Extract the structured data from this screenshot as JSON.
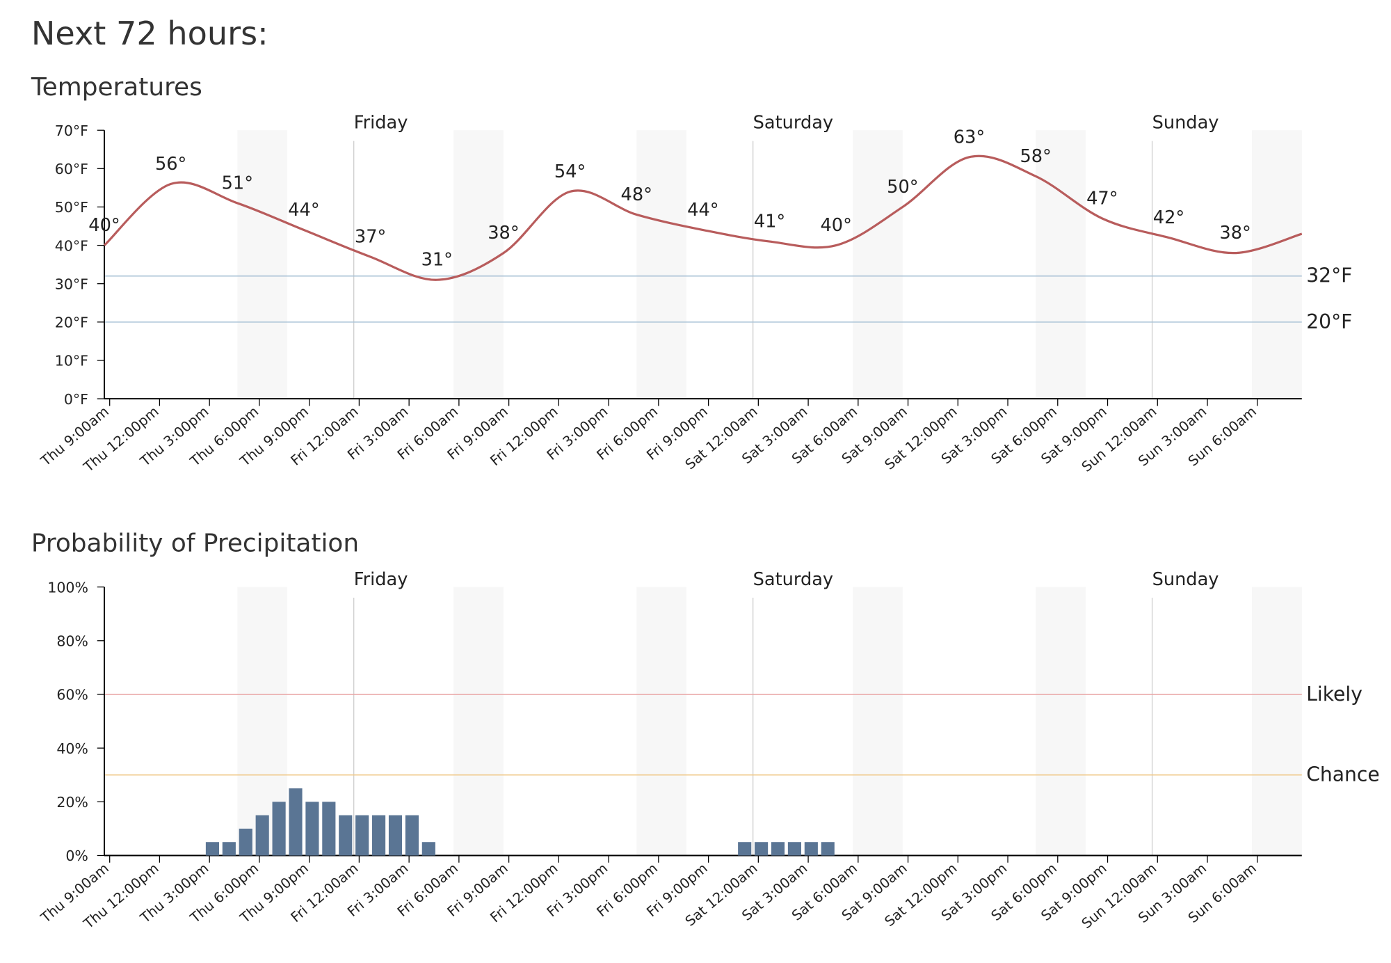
{
  "title": "Next 72 hours:",
  "chart_data": [
    {
      "type": "line",
      "title": "Temperatures",
      "x": [
        9,
        13,
        17,
        21,
        25,
        29,
        33,
        37,
        41,
        45,
        49,
        53,
        57,
        61,
        65,
        69,
        73,
        77,
        81
      ],
      "values": [
        40,
        56,
        51,
        44,
        37,
        31,
        38,
        54,
        48,
        44,
        41,
        40,
        50,
        63,
        58,
        47,
        42,
        38,
        43
      ],
      "value_labels": [
        "40°",
        "56°",
        "51°",
        "44°",
        "37°",
        "31°",
        "38°",
        "54°",
        "48°",
        "44°",
        "41°",
        "40°",
        "50°",
        "63°",
        "58°",
        "47°",
        "42°",
        "38°",
        null
      ],
      "color": "#b85c5c",
      "xlim": [
        9,
        81
      ],
      "xticks": [
        {
          "value": 9,
          "label": "Thu 9:00am"
        },
        {
          "value": 12,
          "label": "Thu 12:00pm"
        },
        {
          "value": 15,
          "label": "Thu 3:00pm"
        },
        {
          "value": 18,
          "label": "Thu 6:00pm"
        },
        {
          "value": 21,
          "label": "Thu 9:00pm"
        },
        {
          "value": 24,
          "label": "Fri 12:00am"
        },
        {
          "value": 27,
          "label": "Fri 3:00am"
        },
        {
          "value": 30,
          "label": "Fri 6:00am"
        },
        {
          "value": 33,
          "label": "Fri 9:00am"
        },
        {
          "value": 36,
          "label": "Fri 12:00pm"
        },
        {
          "value": 39,
          "label": "Fri 3:00pm"
        },
        {
          "value": 42,
          "label": "Fri 6:00pm"
        },
        {
          "value": 45,
          "label": "Fri 9:00pm"
        },
        {
          "value": 48,
          "label": "Sat 12:00am"
        },
        {
          "value": 51,
          "label": "Sat 3:00am"
        },
        {
          "value": 54,
          "label": "Sat 6:00am"
        },
        {
          "value": 57,
          "label": "Sat 9:00am"
        },
        {
          "value": 60,
          "label": "Sat 12:00pm"
        },
        {
          "value": 63,
          "label": "Sat 3:00pm"
        },
        {
          "value": 66,
          "label": "Sat 6:00pm"
        },
        {
          "value": 69,
          "label": "Sat 9:00pm"
        },
        {
          "value": 72,
          "label": "Sun 12:00am"
        },
        {
          "value": 75,
          "label": "Sun 3:00am"
        },
        {
          "value": 78,
          "label": "Sun 6:00am"
        }
      ],
      "ylim": [
        0,
        70
      ],
      "yticks": [
        {
          "value": 0,
          "label": "0°F"
        },
        {
          "value": 10,
          "label": "10°F"
        },
        {
          "value": 20,
          "label": "20°F"
        },
        {
          "value": 30,
          "label": "30°F"
        },
        {
          "value": 40,
          "label": "40°F"
        },
        {
          "value": 50,
          "label": "50°F"
        },
        {
          "value": 60,
          "label": "60°F"
        },
        {
          "value": 70,
          "label": "70°F"
        }
      ],
      "reference_lines": [
        {
          "value": 32,
          "label": "32°F",
          "color": "#a9c2d6"
        },
        {
          "value": 20,
          "label": "20°F",
          "color": "#a9c2d6"
        }
      ],
      "day_markers": [
        {
          "value": 24,
          "label": "Friday"
        },
        {
          "value": 48,
          "label": "Saturday"
        },
        {
          "value": 72,
          "label": "Sunday"
        }
      ],
      "shade_ranges": [
        [
          17,
          20
        ],
        [
          30,
          33
        ],
        [
          41,
          44
        ],
        [
          54,
          57
        ],
        [
          65,
          68
        ],
        [
          78,
          81
        ]
      ]
    },
    {
      "type": "bar",
      "title": "Probability of Precipitation",
      "x": [
        15,
        16,
        17,
        18,
        19,
        20,
        21,
        22,
        23,
        24,
        25,
        26,
        27,
        28,
        47,
        48,
        49,
        50,
        51,
        52
      ],
      "values": [
        5,
        5,
        10,
        15,
        20,
        25,
        20,
        20,
        15,
        15,
        15,
        15,
        15,
        5,
        5,
        5,
        5,
        5,
        5,
        5
      ],
      "color": "#5a7594",
      "xlim": [
        9,
        81
      ],
      "xticks": [
        {
          "value": 9,
          "label": "Thu 9:00am"
        },
        {
          "value": 12,
          "label": "Thu 12:00pm"
        },
        {
          "value": 15,
          "label": "Thu 3:00pm"
        },
        {
          "value": 18,
          "label": "Thu 6:00pm"
        },
        {
          "value": 21,
          "label": "Thu 9:00pm"
        },
        {
          "value": 24,
          "label": "Fri 12:00am"
        },
        {
          "value": 27,
          "label": "Fri 3:00am"
        },
        {
          "value": 30,
          "label": "Fri 6:00am"
        },
        {
          "value": 33,
          "label": "Fri 9:00am"
        },
        {
          "value": 36,
          "label": "Fri 12:00pm"
        },
        {
          "value": 39,
          "label": "Fri 3:00pm"
        },
        {
          "value": 42,
          "label": "Fri 6:00pm"
        },
        {
          "value": 45,
          "label": "Fri 9:00pm"
        },
        {
          "value": 48,
          "label": "Sat 12:00am"
        },
        {
          "value": 51,
          "label": "Sat 3:00am"
        },
        {
          "value": 54,
          "label": "Sat 6:00am"
        },
        {
          "value": 57,
          "label": "Sat 9:00am"
        },
        {
          "value": 60,
          "label": "Sat 12:00pm"
        },
        {
          "value": 63,
          "label": "Sat 3:00pm"
        },
        {
          "value": 66,
          "label": "Sat 6:00pm"
        },
        {
          "value": 69,
          "label": "Sat 9:00pm"
        },
        {
          "value": 72,
          "label": "Sun 12:00am"
        },
        {
          "value": 75,
          "label": "Sun 3:00am"
        },
        {
          "value": 78,
          "label": "Sun 6:00am"
        }
      ],
      "ylim": [
        0,
        100
      ],
      "yticks": [
        {
          "value": 0,
          "label": "0%"
        },
        {
          "value": 20,
          "label": "20%"
        },
        {
          "value": 40,
          "label": "40%"
        },
        {
          "value": 60,
          "label": "60%"
        },
        {
          "value": 80,
          "label": "80%"
        },
        {
          "value": 100,
          "label": "100%"
        }
      ],
      "reference_lines": [
        {
          "value": 60,
          "label": "Likely",
          "color": "#e8a4a4"
        },
        {
          "value": 30,
          "label": "Chance",
          "color": "#f0c98a"
        }
      ],
      "day_markers": [
        {
          "value": 24,
          "label": "Friday"
        },
        {
          "value": 48,
          "label": "Saturday"
        },
        {
          "value": 72,
          "label": "Sunday"
        }
      ],
      "shade_ranges": [
        [
          17,
          20
        ],
        [
          30,
          33
        ],
        [
          41,
          44
        ],
        [
          54,
          57
        ],
        [
          65,
          68
        ],
        [
          78,
          81
        ]
      ]
    }
  ]
}
